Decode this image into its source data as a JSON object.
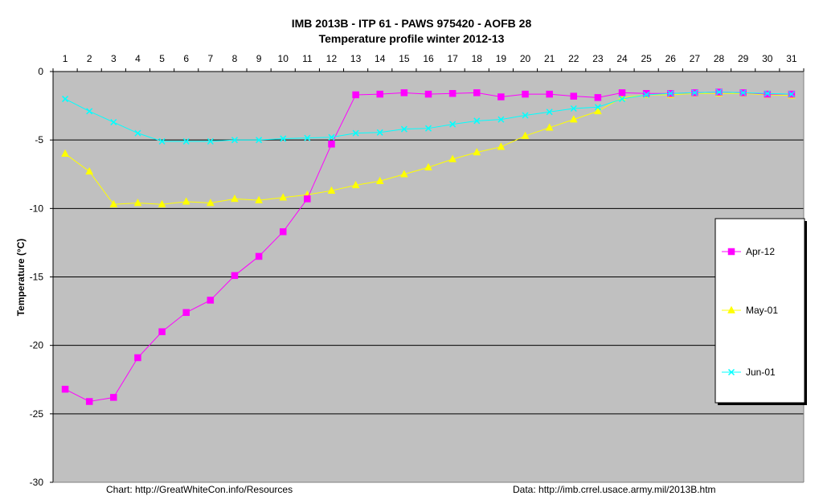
{
  "chart_data": {
    "type": "line",
    "title": "IMB 2013B  - ITP 61 - PAWS 975420  - AOFB 28",
    "subtitle": "Temperature profile winter 2012-13",
    "xlabel": "",
    "ylabel": "Temperature (°C)",
    "x": [
      1,
      2,
      3,
      4,
      5,
      6,
      7,
      8,
      9,
      10,
      11,
      12,
      13,
      14,
      15,
      16,
      17,
      18,
      19,
      20,
      21,
      22,
      23,
      24,
      25,
      26,
      27,
      28,
      29,
      30,
      31
    ],
    "x_tick_labels": [
      "1",
      "2",
      "3",
      "4",
      "5",
      "6",
      "7",
      "8",
      "9",
      "10",
      "11",
      "12",
      "13",
      "14",
      "15",
      "16",
      "17",
      "18",
      "19",
      "20",
      "21",
      "22",
      "23",
      "24",
      "25",
      "26",
      "27",
      "28",
      "29",
      "30",
      "31"
    ],
    "x_axis_position": "top",
    "ylim": [
      -30,
      0
    ],
    "y_ticks": [
      0,
      -5,
      -10,
      -15,
      -20,
      -25,
      -30
    ],
    "y_tick_labels": [
      "0",
      "-5",
      "-10",
      "-15",
      "-20",
      "-25",
      "-30"
    ],
    "grid": "horizontal",
    "plot_background": "#c0c0c0",
    "legend_position": "right",
    "series": [
      {
        "name": "Apr-12",
        "color": "#ff00ff",
        "marker": "square",
        "values": [
          -23.2,
          -24.1,
          -23.8,
          -20.9,
          -19.0,
          -17.6,
          -16.7,
          -14.9,
          -13.5,
          -11.7,
          -9.3,
          -5.3,
          -1.7,
          -1.65,
          -1.55,
          -1.65,
          -1.6,
          -1.55,
          -1.85,
          -1.65,
          -1.65,
          -1.8,
          -1.9,
          -1.55,
          -1.6,
          -1.6,
          -1.55,
          -1.5,
          -1.55,
          -1.65,
          -1.65
        ]
      },
      {
        "name": "May-01",
        "color": "#ffff00",
        "marker": "triangle",
        "values": [
          -6.0,
          -7.3,
          -9.7,
          -9.6,
          -9.7,
          -9.5,
          -9.6,
          -9.3,
          -9.4,
          -9.2,
          -9.0,
          -8.7,
          -8.3,
          -8.0,
          -7.5,
          -7.0,
          -6.4,
          -5.9,
          -5.5,
          -4.7,
          -4.1,
          -3.5,
          -2.9,
          -1.9,
          -1.7,
          -1.7,
          -1.6,
          -1.6,
          -1.6,
          -1.7,
          -1.75
        ]
      },
      {
        "name": "Jun-01",
        "color": "#00ffff",
        "marker": "x",
        "values": [
          -2.0,
          -2.9,
          -3.7,
          -4.5,
          -5.1,
          -5.1,
          -5.1,
          -5.0,
          -5.0,
          -4.9,
          -4.85,
          -4.8,
          -4.5,
          -4.45,
          -4.2,
          -4.15,
          -3.85,
          -3.6,
          -3.5,
          -3.2,
          -2.95,
          -2.7,
          -2.6,
          -2.0,
          -1.7,
          -1.6,
          -1.55,
          -1.5,
          -1.55,
          -1.6,
          -1.65
        ]
      }
    ],
    "footer_left": "Chart:  http://GreatWhiteCon.info/Resources",
    "footer_right": "Data:  http://imb.crrel.usace.army.mil/2013B.htm"
  }
}
